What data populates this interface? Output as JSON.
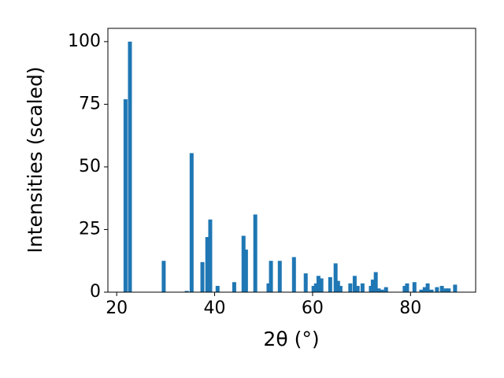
{
  "chart_data": {
    "type": "bar",
    "x_label": "2θ (°)",
    "y_label": "Intensities (scaled)",
    "x": [
      21.8,
      22.7,
      29.6,
      34.3,
      35.3,
      37.5,
      38.5,
      39.1,
      40.6,
      44.0,
      45.9,
      46.4,
      48.3,
      51.0,
      51.5,
      53.3,
      56.2,
      58.6,
      60.2,
      60.7,
      61.2,
      61.8,
      63.6,
      64.7,
      65.2,
      65.7,
      67.7,
      68.6,
      69.2,
      70.2,
      71.9,
      72.3,
      72.9,
      73.5,
      74.2,
      75.0,
      78.8,
      79.3,
      80.8,
      82.2,
      82.9,
      83.5,
      84.3,
      85.4,
      86.4,
      87.2,
      87.8,
      89.1
    ],
    "values": [
      77,
      100,
      12.5,
      0.5,
      55.5,
      12,
      22,
      29,
      2.5,
      4,
      22.5,
      17,
      31,
      3.5,
      12.5,
      12.5,
      14,
      7.5,
      2.5,
      3.5,
      6.5,
      5.5,
      6,
      11.5,
      4.5,
      2.5,
      3.5,
      6.5,
      2.5,
      3.5,
      2.5,
      5,
      8,
      1.5,
      1,
      2,
      2.5,
      3.5,
      4,
      1,
      2,
      3.5,
      1,
      2,
      2.5,
      1.5,
      1.5,
      3
    ],
    "color": "#1f77b4",
    "xlim": [
      18.2,
      93.3
    ],
    "ylim": [
      0,
      105.3
    ],
    "xticks": [
      20,
      40,
      60,
      80
    ],
    "yticks": [
      0,
      25,
      50,
      75,
      100
    ]
  }
}
